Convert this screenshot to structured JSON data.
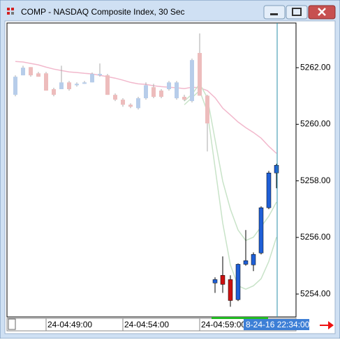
{
  "window": {
    "title": "COMP - NASDAQ Composite Index, 30 Sec"
  },
  "chart_data": {
    "type": "candlestick",
    "categories": [
      null,
      null,
      null,
      null,
      "24-04:49:00",
      null,
      null,
      null,
      null,
      null,
      null,
      null,
      null,
      null,
      "24-04:54:00",
      null,
      null,
      null,
      null,
      null,
      null,
      null,
      null,
      null,
      "24-04:59:00",
      null,
      null,
      null,
      null,
      null,
      null,
      null,
      null,
      null,
      null
    ],
    "open": [
      5261.04,
      5261.73,
      5262.02,
      5261.8,
      5261.8,
      5261.24,
      5261.24,
      5261.48,
      5261.38,
      5261.43,
      5261.48,
      5261.73,
      5261.73,
      5261.04,
      5260.87,
      5260.69,
      5260.57,
      5260.92,
      5261.31,
      5261.19,
      5261.24,
      5260.92,
      5260.97,
      5260.82,
      5262.52,
      5261.01,
      5254.39,
      5254.66,
      5254.51,
      5253.8,
      5255.05,
      5255.03,
      5255.45,
      5257.05,
      5258.28
    ],
    "high": [
      5261.73,
      5262.07,
      5262.02,
      5261.85,
      5261.85,
      5261.29,
      5262.07,
      5261.53,
      5261.48,
      5261.53,
      5261.83,
      5262.15,
      5261.78,
      5261.09,
      5260.92,
      5260.74,
      5260.97,
      5261.48,
      5261.43,
      5261.24,
      5261.53,
      5261.53,
      5261.04,
      5262.32,
      5263.21,
      5261.04,
      5254.59,
      5255.33,
      5254.66,
      5255.08,
      5256.26,
      5255.47,
      5257.1,
      5258.35,
      5258.6
    ],
    "low": [
      5260.99,
      5261.73,
      5261.68,
      5261.68,
      5261.19,
      5260.99,
      5261.24,
      5261.19,
      5261.33,
      5261.43,
      5261.48,
      5261.68,
      5261.04,
      5260.82,
      5260.62,
      5260.57,
      5260.52,
      5260.87,
      5260.92,
      5260.92,
      5261.19,
      5260.87,
      5260.82,
      5260.77,
      5261.01,
      5259.04,
      5254.04,
      5254.04,
      5253.55,
      5253.75,
      5255.0,
      5254.81,
      5255.4,
      5257.0,
      5257.74
    ],
    "close": [
      5261.68,
      5262.0,
      5261.73,
      5261.68,
      5261.19,
      5261.04,
      5261.48,
      5261.24,
      5261.43,
      5261.48,
      5261.78,
      5261.78,
      5261.04,
      5260.87,
      5260.69,
      5260.62,
      5260.92,
      5261.38,
      5260.97,
      5260.97,
      5261.48,
      5261.48,
      5260.87,
      5262.27,
      5261.01,
      5260.03,
      5254.51,
      5254.34,
      5253.77,
      5255.05,
      5255.18,
      5255.4,
      5257.05,
      5258.28,
      5258.55
    ],
    "colors": [
      "#b7cdea",
      "#b7cdea",
      "#edbcbc",
      "#edbcbc",
      "#edbcbc",
      "#edbcbc",
      "#b7cdea",
      "#edbcbc",
      "#b7cdea",
      "#b7cdea",
      "#b7cdea",
      "#b7cdea",
      "#edbcbc",
      "#edbcbc",
      "#edbcbc",
      "#edbcbc",
      "#b7cdea",
      "#b7cdea",
      "#edbcbc",
      "#edbcbc",
      "#b7cdea",
      "#b7cdea",
      "#edbcbc",
      "#b7cdea",
      "#edbcbc",
      "#edbcbc",
      "#1f5fd6",
      "#cc1111",
      "#cc1111",
      "#1f5fd6",
      "#1f5fd6",
      "#1f5fd6",
      "#1f5fd6",
      "#1f5fd6",
      "#1f5fd6"
    ],
    "wick_colors": [
      "#aaaaaa",
      "#aaaaaa",
      "#aaaaaa",
      "#aaaaaa",
      "#aaaaaa",
      "#aaaaaa",
      "#aaaaaa",
      "#aaaaaa",
      "#aaaaaa",
      "#aaaaaa",
      "#aaaaaa",
      "#aaaaaa",
      "#aaaaaa",
      "#aaaaaa",
      "#aaaaaa",
      "#aaaaaa",
      "#aaaaaa",
      "#aaaaaa",
      "#aaaaaa",
      "#aaaaaa",
      "#aaaaaa",
      "#aaaaaa",
      "#aaaaaa",
      "#aaaaaa",
      "#aaaaaa",
      "#aaaaaa",
      "#000000",
      "#000000",
      "#000000",
      "#000000",
      "#000000",
      "#000000",
      "#000000",
      "#000000",
      "#000000"
    ],
    "lines": [
      {
        "color": "#f2b8cc",
        "values": [
          5262.22,
          5262.2,
          5262.15,
          5262.1,
          5262.02,
          5261.95,
          5261.9,
          5261.85,
          5261.83,
          5261.8,
          5261.78,
          5261.73,
          5261.68,
          5261.63,
          5261.56,
          5261.48,
          5261.43,
          5261.41,
          5261.36,
          5261.33,
          5261.31,
          5261.29,
          5261.26,
          5261.31,
          5261.29,
          5261.19,
          5260.94,
          5260.57,
          5260.33,
          5260.08,
          5259.88,
          5259.71,
          5259.51,
          5259.22,
          5258.97
        ]
      },
      {
        "color": "#c8e3c8",
        "values": [
          null,
          null,
          null,
          null,
          null,
          null,
          null,
          null,
          null,
          null,
          null,
          null,
          null,
          null,
          null,
          null,
          null,
          null,
          null,
          null,
          null,
          null,
          5260.82,
          5261.06,
          5261.43,
          5260.94,
          5259.46,
          5257.99,
          5257.0,
          5256.26,
          5255.89,
          5256.01,
          5256.38,
          5256.75,
          5257.25
        ]
      },
      {
        "color": "#c8e3c8",
        "values": [
          null,
          null,
          null,
          null,
          null,
          null,
          null,
          null,
          null,
          null,
          null,
          null,
          null,
          null,
          null,
          null,
          null,
          null,
          null,
          null,
          null,
          null,
          5260.69,
          5260.94,
          5261.19,
          5260.45,
          5258.48,
          5256.51,
          5255.03,
          5254.29,
          5254.17,
          5254.29,
          5254.54,
          5255.15,
          5256.01
        ]
      }
    ],
    "ylim": [
      5253.19,
      5263.58
    ],
    "yticks": [
      {
        "value": 5254,
        "label": "5254.00"
      },
      {
        "value": 5256,
        "label": "5256.00"
      },
      {
        "value": 5258,
        "label": "5258.00"
      },
      {
        "value": 5260,
        "label": "5260.00"
      },
      {
        "value": 5262,
        "label": "5262.00"
      }
    ],
    "crosshair_label": "8-24-16 22:34:00",
    "crosshair_color": "#2a8fa8"
  }
}
